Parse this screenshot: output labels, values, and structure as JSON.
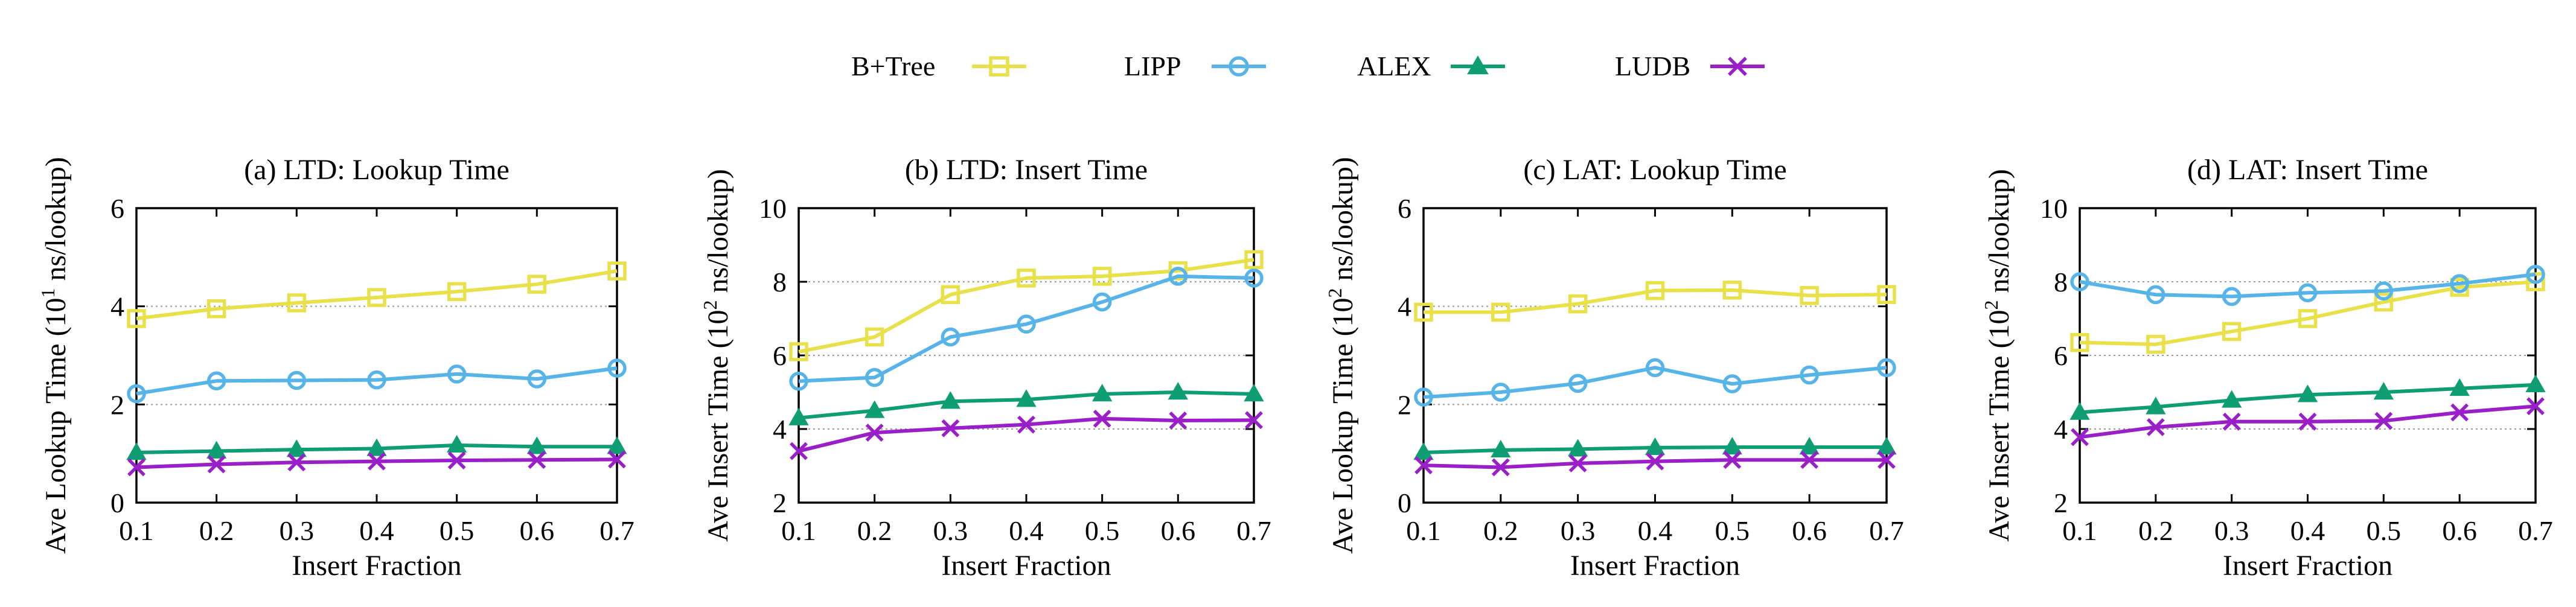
{
  "legend": {
    "series": [
      {
        "name": "B+Tree",
        "color": "#e8e14a",
        "marker": "square"
      },
      {
        "name": "LIPP",
        "color": "#56b4e9",
        "marker": "circle"
      },
      {
        "name": "ALEX",
        "color": "#0f9e73",
        "marker": "triangle"
      },
      {
        "name": "LUDB",
        "color": "#9b1fc9",
        "marker": "cross"
      }
    ]
  },
  "chart_data": [
    {
      "type": "line",
      "title": "(a) LTD: Lookup Time",
      "xlabel": "Insert Fraction",
      "ylabel": "Ave Lookup Time (10",
      "ylabel_exp": "1",
      "ylabel_unit": " ns/lookup)",
      "x": [
        0.1,
        0.2,
        0.3,
        0.4,
        0.5,
        0.6,
        0.7
      ],
      "x_ticks": [
        "0.1",
        "0.2",
        "0.3",
        "0.4",
        "0.5",
        "0.6",
        "0.7"
      ],
      "ylim": [
        0,
        6
      ],
      "y_ticks": [
        0,
        2,
        4,
        6
      ],
      "y_tick_labels": [
        "0",
        "2",
        "4",
        "6"
      ],
      "series": [
        {
          "name": "B+Tree",
          "values": [
            3.75,
            3.95,
            4.07,
            4.18,
            4.3,
            4.45,
            4.72
          ]
        },
        {
          "name": "LIPP",
          "values": [
            2.22,
            2.48,
            2.49,
            2.5,
            2.62,
            2.52,
            2.74
          ]
        },
        {
          "name": "ALEX",
          "values": [
            1.02,
            1.05,
            1.08,
            1.1,
            1.17,
            1.14,
            1.14
          ]
        },
        {
          "name": "LUDB",
          "values": [
            0.72,
            0.78,
            0.82,
            0.84,
            0.86,
            0.87,
            0.88
          ]
        }
      ]
    },
    {
      "type": "line",
      "title": "(b) LTD: Insert Time",
      "xlabel": "Insert Fraction",
      "ylabel": "Ave Insert Time (10",
      "ylabel_exp": "2",
      "ylabel_unit": " ns/lookup)",
      "x": [
        0.1,
        0.2,
        0.3,
        0.4,
        0.5,
        0.6,
        0.7
      ],
      "x_ticks": [
        "0.1",
        "0.2",
        "0.3",
        "0.4",
        "0.5",
        "0.6",
        "0.7"
      ],
      "ylim": [
        2,
        10
      ],
      "y_ticks": [
        2,
        4,
        6,
        8,
        10
      ],
      "y_tick_labels": [
        "2",
        "4",
        "6",
        "8",
        "10"
      ],
      "series": [
        {
          "name": "B+Tree",
          "values": [
            6.1,
            6.5,
            7.65,
            8.1,
            8.15,
            8.3,
            8.6
          ]
        },
        {
          "name": "LIPP",
          "values": [
            5.3,
            5.4,
            6.5,
            6.85,
            7.45,
            8.15,
            8.1
          ]
        },
        {
          "name": "ALEX",
          "values": [
            4.3,
            4.5,
            4.75,
            4.8,
            4.95,
            5.0,
            4.95
          ]
        },
        {
          "name": "LUDB",
          "values": [
            3.4,
            3.9,
            4.02,
            4.12,
            4.28,
            4.23,
            4.24
          ]
        }
      ]
    },
    {
      "type": "line",
      "title": "(c) LAT: Lookup Time",
      "xlabel": "Insert Fraction",
      "ylabel": "Ave Lookup Time (10",
      "ylabel_exp": "2",
      "ylabel_unit": " ns/lookup)",
      "x": [
        0.1,
        0.2,
        0.3,
        0.4,
        0.5,
        0.6,
        0.7
      ],
      "x_ticks": [
        "0.1",
        "0.2",
        "0.3",
        "0.4",
        "0.5",
        "0.6",
        "0.7"
      ],
      "ylim": [
        0,
        6
      ],
      "y_ticks": [
        0,
        2,
        4,
        6
      ],
      "y_tick_labels": [
        "0",
        "2",
        "4",
        "6"
      ],
      "series": [
        {
          "name": "B+Tree",
          "values": [
            3.88,
            3.88,
            4.05,
            4.32,
            4.33,
            4.22,
            4.24
          ]
        },
        {
          "name": "LIPP",
          "values": [
            2.15,
            2.25,
            2.43,
            2.75,
            2.42,
            2.6,
            2.75
          ]
        },
        {
          "name": "ALEX",
          "values": [
            1.02,
            1.07,
            1.09,
            1.12,
            1.13,
            1.13,
            1.13
          ]
        },
        {
          "name": "LUDB",
          "values": [
            0.76,
            0.72,
            0.8,
            0.84,
            0.87,
            0.87,
            0.87
          ]
        }
      ]
    },
    {
      "type": "line",
      "title": "(d) LAT: Insert Time",
      "xlabel": "Insert Fraction",
      "ylabel": "Ave Insert Time (10",
      "ylabel_exp": "2",
      "ylabel_unit": " ns/lookup)",
      "x": [
        0.1,
        0.2,
        0.3,
        0.4,
        0.5,
        0.6,
        0.7
      ],
      "x_ticks": [
        "0.1",
        "0.2",
        "0.3",
        "0.4",
        "0.5",
        "0.6",
        "0.7"
      ],
      "ylim": [
        2,
        10
      ],
      "y_ticks": [
        2,
        4,
        6,
        8,
        10
      ],
      "y_tick_labels": [
        "2",
        "4",
        "6",
        "8",
        "10"
      ],
      "series": [
        {
          "name": "B+Tree",
          "values": [
            6.35,
            6.3,
            6.65,
            7.0,
            7.45,
            7.85,
            8.0
          ]
        },
        {
          "name": "LIPP",
          "values": [
            8.0,
            7.65,
            7.6,
            7.7,
            7.75,
            7.95,
            8.2
          ]
        },
        {
          "name": "ALEX",
          "values": [
            4.45,
            4.6,
            4.78,
            4.93,
            5.0,
            5.1,
            5.2
          ]
        },
        {
          "name": "LUDB",
          "values": [
            3.78,
            4.05,
            4.2,
            4.2,
            4.22,
            4.45,
            4.62
          ]
        }
      ]
    }
  ]
}
